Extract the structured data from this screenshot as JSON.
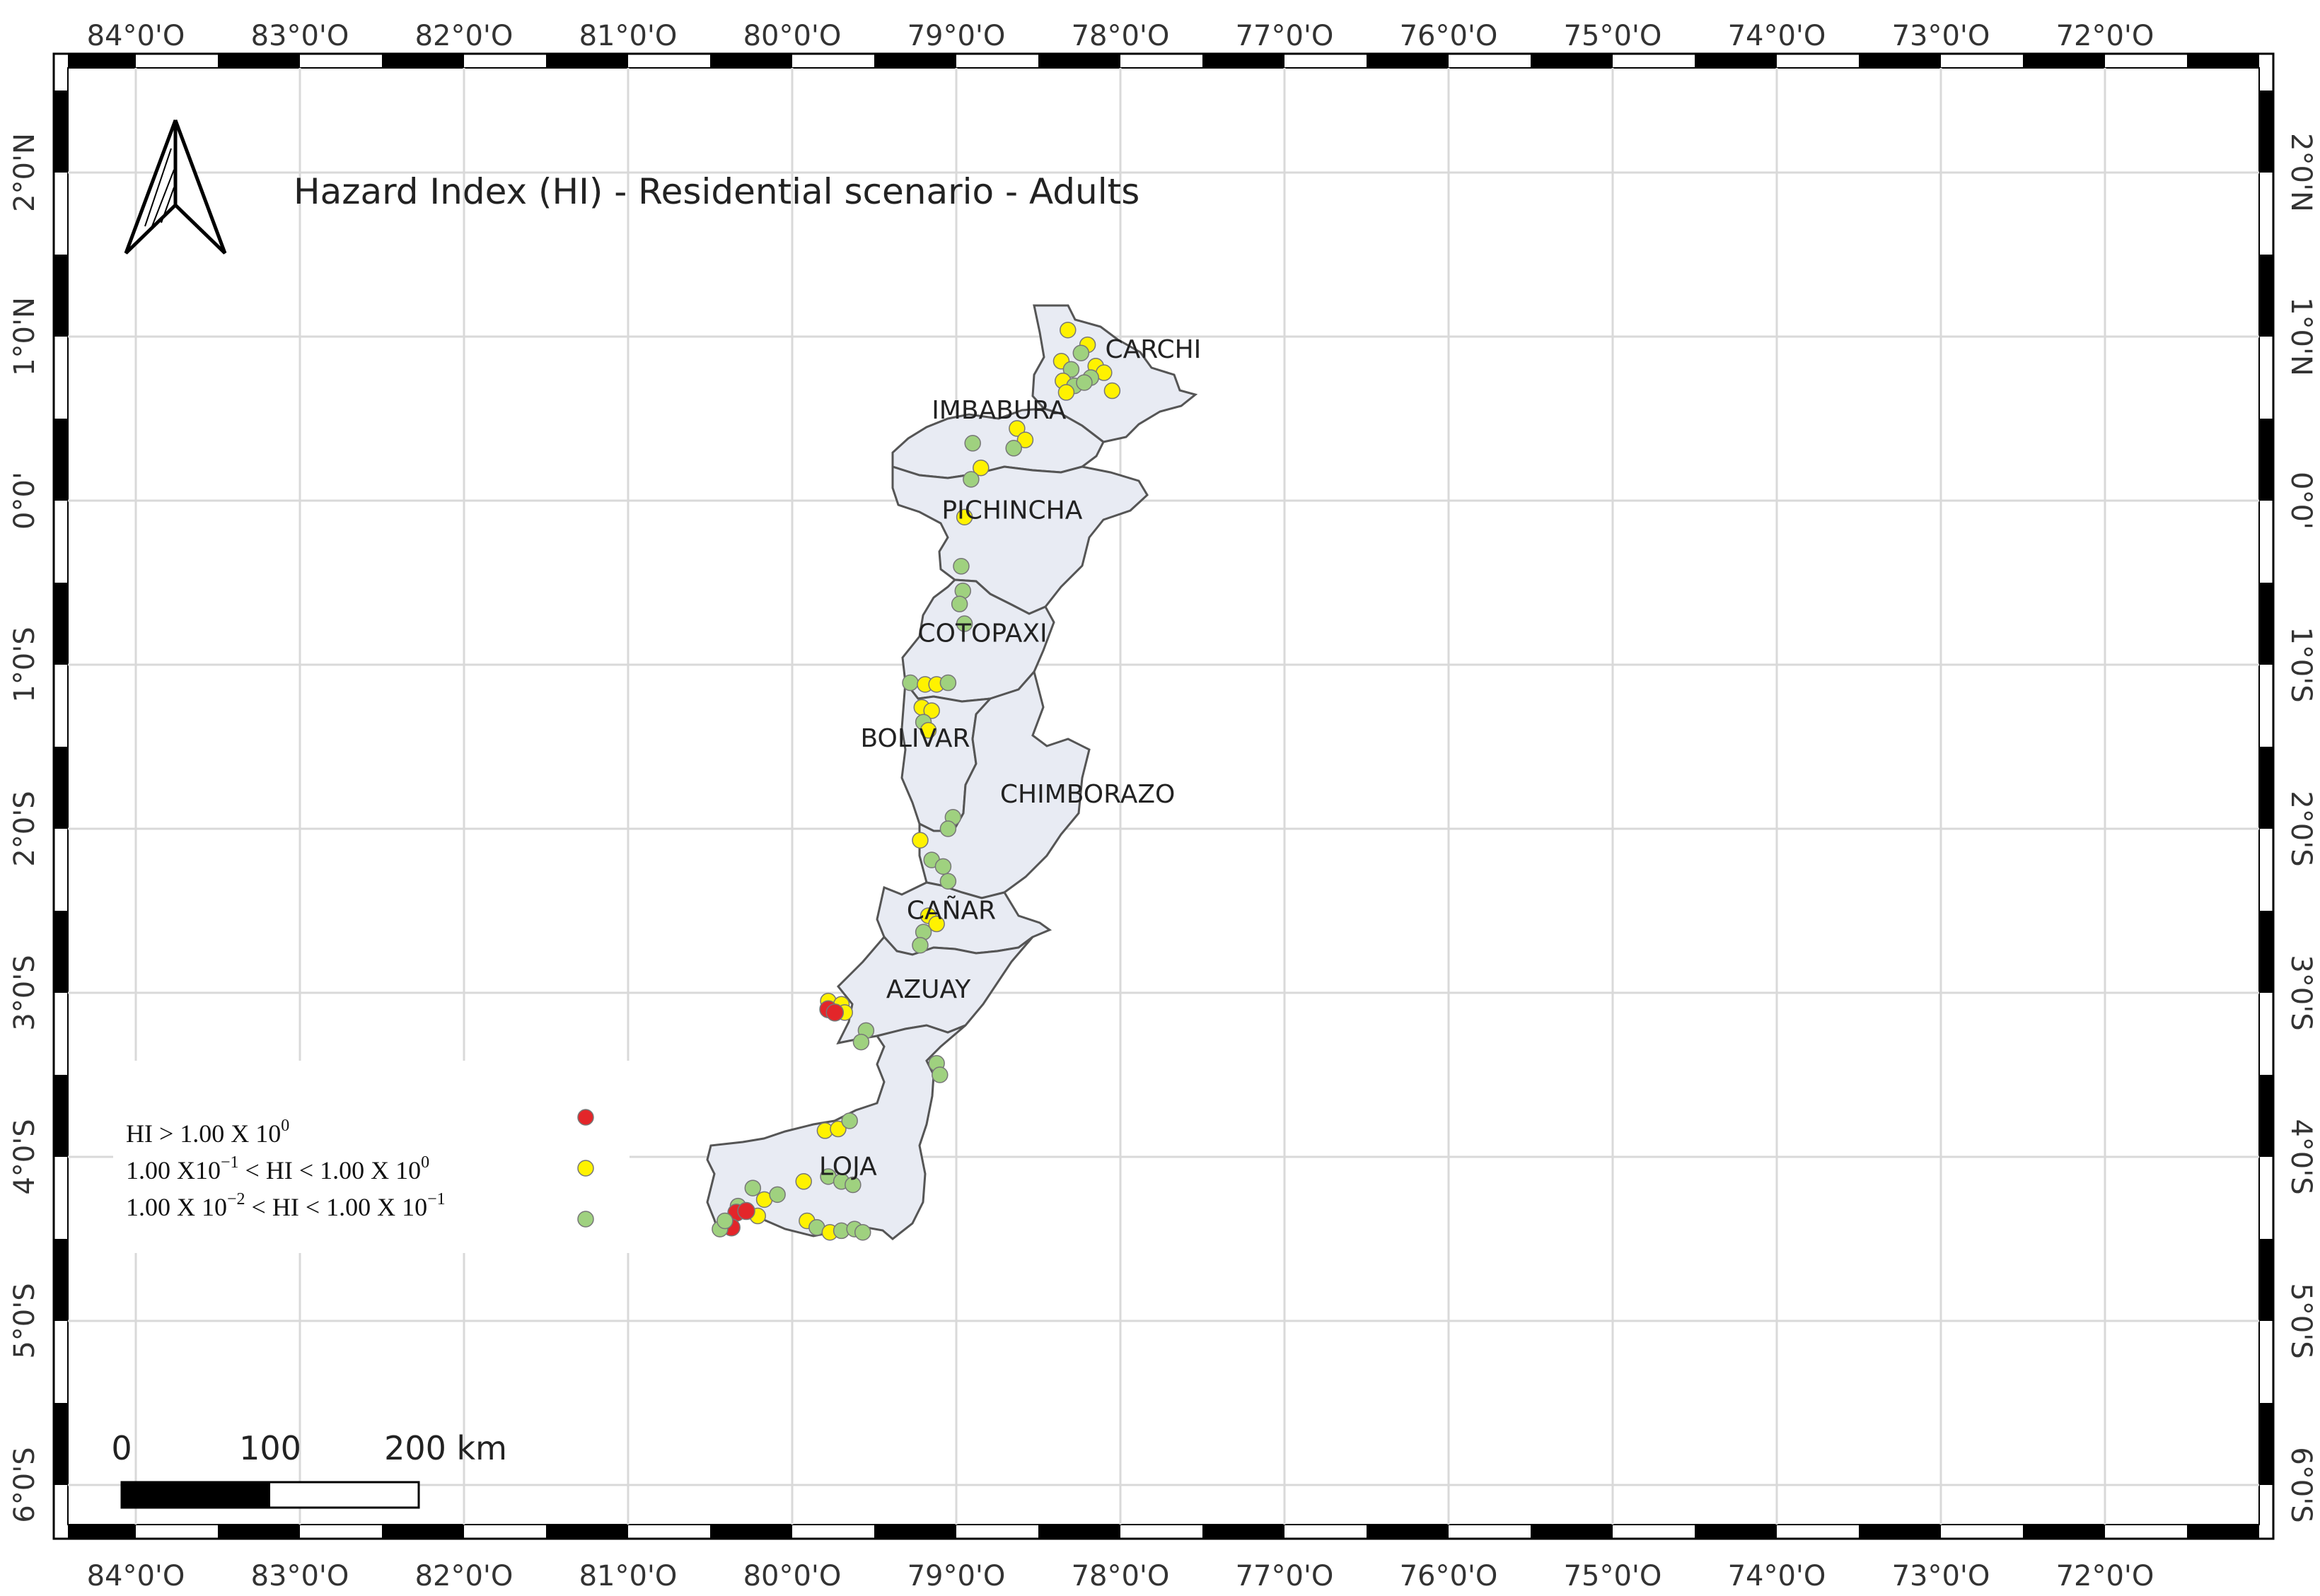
{
  "map": {
    "title": "Hazard Index (HI) - Residential scenario - Adults",
    "lon_labels": [
      "84°0'O",
      "83°0'O",
      "82°0'O",
      "81°0'O",
      "80°0'O",
      "79°0'O",
      "78°0'O",
      "77°0'O",
      "76°0'O",
      "75°0'O",
      "74°0'O",
      "73°0'O",
      "72°0'O"
    ],
    "lat_labels": [
      "2°0'N",
      "1°0'N",
      "0°0'",
      "1°0'S",
      "2°0'S",
      "3°0'S",
      "4°0'S",
      "5°0'S",
      "6°0'S"
    ],
    "provinces": [
      {
        "name": "CARCHI",
        "lon": -77.8,
        "lat": 0.87
      },
      {
        "name": "IMBABURA",
        "lon": -78.74,
        "lat": 0.5
      },
      {
        "name": "PICHINCHA",
        "lon": -78.66,
        "lat": -0.11
      },
      {
        "name": "COTOPAXI",
        "lon": -78.84,
        "lat": -0.86
      },
      {
        "name": "BOLIVAR",
        "lon": -79.25,
        "lat": -1.5
      },
      {
        "name": "CHIMBORAZO",
        "lon": -78.2,
        "lat": -1.84
      },
      {
        "name": "CAÑAR",
        "lon": -79.03,
        "lat": -2.55
      },
      {
        "name": "AZUAY",
        "lon": -79.17,
        "lat": -3.03
      },
      {
        "name": "LOJA",
        "lon": -79.66,
        "lat": -4.11
      }
    ],
    "colors": {
      "high": "#e3262a",
      "medium": "#fff200",
      "low": "#9fd17f",
      "region_fill": "#e8ebf3",
      "region_stroke": "#555555",
      "grid": "#d9d9d9"
    },
    "legend": [
      {
        "level": "high",
        "base": "HI > 1.00 X 10",
        "sup": "0",
        "tail": ""
      },
      {
        "level": "medium",
        "base": "1.00 X10",
        "sup": "−1",
        "tail": " < HI < 1.00 X 10",
        "sup2": "0"
      },
      {
        "level": "low",
        "base": "1.00 X 10",
        "sup": "−2",
        "tail": " < HI < 1.00 X 10",
        "sup2": "−1"
      }
    ],
    "scale_bar": {
      "labels": [
        "0",
        "100",
        "200 km"
      ]
    },
    "north_arrow_icon": "north-arrow-icon",
    "sample_points": [
      {
        "lon": -78.32,
        "lat": 1.04,
        "level": "medium"
      },
      {
        "lon": -78.2,
        "lat": 0.95,
        "level": "medium"
      },
      {
        "lon": -78.24,
        "lat": 0.9,
        "level": "low"
      },
      {
        "lon": -78.36,
        "lat": 0.85,
        "level": "medium"
      },
      {
        "lon": -78.3,
        "lat": 0.8,
        "level": "low"
      },
      {
        "lon": -78.15,
        "lat": 0.82,
        "level": "medium"
      },
      {
        "lon": -78.1,
        "lat": 0.78,
        "level": "medium"
      },
      {
        "lon": -78.35,
        "lat": 0.73,
        "level": "medium"
      },
      {
        "lon": -78.28,
        "lat": 0.7,
        "level": "low"
      },
      {
        "lon": -78.18,
        "lat": 0.75,
        "level": "low"
      },
      {
        "lon": -78.05,
        "lat": 0.67,
        "level": "medium"
      },
      {
        "lon": -78.33,
        "lat": 0.66,
        "level": "medium"
      },
      {
        "lon": -78.22,
        "lat": 0.72,
        "level": "low"
      },
      {
        "lon": -78.63,
        "lat": 0.44,
        "level": "medium"
      },
      {
        "lon": -78.58,
        "lat": 0.37,
        "level": "medium"
      },
      {
        "lon": -78.65,
        "lat": 0.32,
        "level": "low"
      },
      {
        "lon": -78.9,
        "lat": 0.35,
        "level": "low"
      },
      {
        "lon": -78.85,
        "lat": 0.2,
        "level": "medium"
      },
      {
        "lon": -78.91,
        "lat": 0.13,
        "level": "low"
      },
      {
        "lon": -78.95,
        "lat": -0.1,
        "level": "medium"
      },
      {
        "lon": -78.97,
        "lat": -0.4,
        "level": "low"
      },
      {
        "lon": -78.96,
        "lat": -0.55,
        "level": "low"
      },
      {
        "lon": -78.98,
        "lat": -0.63,
        "level": "low"
      },
      {
        "lon": -78.95,
        "lat": -0.75,
        "level": "low"
      },
      {
        "lon": -79.28,
        "lat": -1.11,
        "level": "low"
      },
      {
        "lon": -79.19,
        "lat": -1.12,
        "level": "medium"
      },
      {
        "lon": -79.12,
        "lat": -1.12,
        "level": "medium"
      },
      {
        "lon": -79.05,
        "lat": -1.11,
        "level": "low"
      },
      {
        "lon": -79.21,
        "lat": -1.26,
        "level": "medium"
      },
      {
        "lon": -79.15,
        "lat": -1.28,
        "level": "medium"
      },
      {
        "lon": -79.2,
        "lat": -1.35,
        "level": "low"
      },
      {
        "lon": -79.17,
        "lat": -1.4,
        "level": "medium"
      },
      {
        "lon": -79.02,
        "lat": -1.93,
        "level": "low"
      },
      {
        "lon": -79.05,
        "lat": -2.0,
        "level": "low"
      },
      {
        "lon": -79.22,
        "lat": -2.07,
        "level": "medium"
      },
      {
        "lon": -79.15,
        "lat": -2.19,
        "level": "low"
      },
      {
        "lon": -79.08,
        "lat": -2.23,
        "level": "low"
      },
      {
        "lon": -79.05,
        "lat": -2.32,
        "level": "low"
      },
      {
        "lon": -79.17,
        "lat": -2.53,
        "level": "medium"
      },
      {
        "lon": -79.12,
        "lat": -2.58,
        "level": "medium"
      },
      {
        "lon": -79.2,
        "lat": -2.63,
        "level": "low"
      },
      {
        "lon": -79.22,
        "lat": -2.71,
        "level": "low"
      },
      {
        "lon": -79.78,
        "lat": -3.05,
        "level": "medium"
      },
      {
        "lon": -79.7,
        "lat": -3.07,
        "level": "medium"
      },
      {
        "lon": -79.68,
        "lat": -3.12,
        "level": "medium"
      },
      {
        "lon": -79.78,
        "lat": -3.1,
        "level": "high"
      },
      {
        "lon": -79.74,
        "lat": -3.12,
        "level": "high"
      },
      {
        "lon": -79.55,
        "lat": -3.23,
        "level": "low"
      },
      {
        "lon": -79.58,
        "lat": -3.3,
        "level": "low"
      },
      {
        "lon": -79.12,
        "lat": -3.43,
        "level": "low"
      },
      {
        "lon": -79.1,
        "lat": -3.5,
        "level": "low"
      },
      {
        "lon": -79.8,
        "lat": -3.84,
        "level": "medium"
      },
      {
        "lon": -79.72,
        "lat": -3.83,
        "level": "medium"
      },
      {
        "lon": -79.65,
        "lat": -3.78,
        "level": "low"
      },
      {
        "lon": -79.93,
        "lat": -4.15,
        "level": "medium"
      },
      {
        "lon": -79.78,
        "lat": -4.12,
        "level": "low"
      },
      {
        "lon": -79.7,
        "lat": -4.15,
        "level": "low"
      },
      {
        "lon": -79.63,
        "lat": -4.17,
        "level": "low"
      },
      {
        "lon": -80.24,
        "lat": -4.19,
        "level": "low"
      },
      {
        "lon": -80.17,
        "lat": -4.26,
        "level": "medium"
      },
      {
        "lon": -80.09,
        "lat": -4.23,
        "level": "low"
      },
      {
        "lon": -80.33,
        "lat": -4.3,
        "level": "low"
      },
      {
        "lon": -80.21,
        "lat": -4.36,
        "level": "medium"
      },
      {
        "lon": -80.34,
        "lat": -4.34,
        "level": "high"
      },
      {
        "lon": -80.28,
        "lat": -4.33,
        "level": "high"
      },
      {
        "lon": -80.37,
        "lat": -4.43,
        "level": "high"
      },
      {
        "lon": -80.44,
        "lat": -4.44,
        "level": "low"
      },
      {
        "lon": -80.41,
        "lat": -4.39,
        "level": "low"
      },
      {
        "lon": -79.91,
        "lat": -4.39,
        "level": "medium"
      },
      {
        "lon": -79.85,
        "lat": -4.43,
        "level": "low"
      },
      {
        "lon": -79.77,
        "lat": -4.46,
        "level": "medium"
      },
      {
        "lon": -79.7,
        "lat": -4.45,
        "level": "low"
      },
      {
        "lon": -79.62,
        "lat": -4.44,
        "level": "low"
      },
      {
        "lon": -79.57,
        "lat": -4.46,
        "level": "low"
      }
    ]
  }
}
